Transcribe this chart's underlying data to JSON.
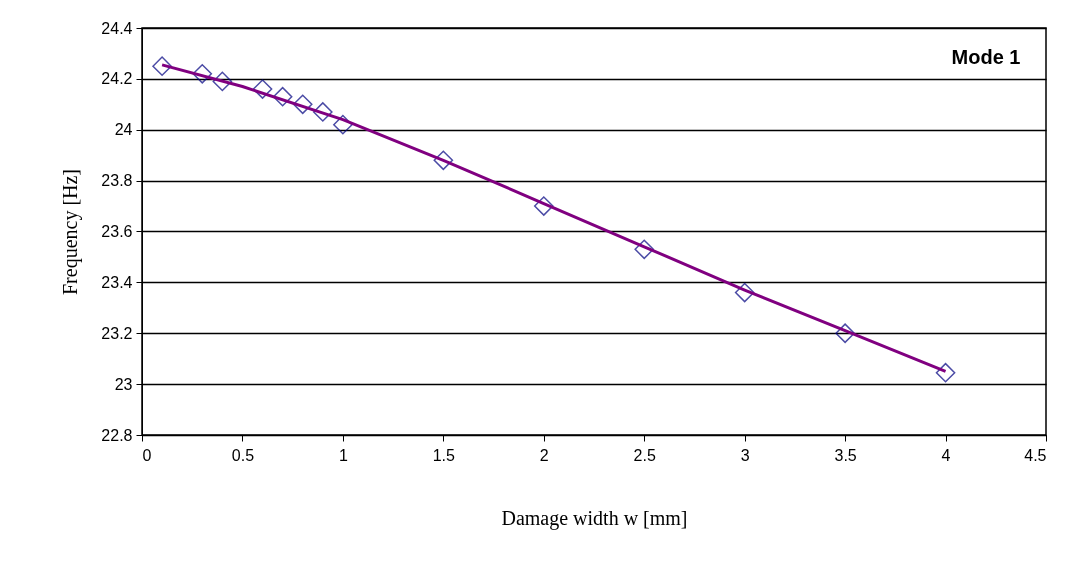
{
  "chart_data": {
    "type": "scatter",
    "xlabel": "Damage width w [mm]",
    "ylabel": "Frequency [Hz]",
    "annotations": [
      "Mode 1"
    ],
    "x": [
      0.1,
      0.3,
      0.4,
      0.6,
      0.7,
      0.8,
      0.9,
      1.0,
      1.5,
      2.0,
      2.5,
      3.0,
      3.5,
      4.0
    ],
    "series": [
      {
        "color": "#000080",
        "marker": "diamond",
        "values": [
          24.25,
          24.22,
          24.19,
          24.16,
          24.13,
          24.1,
          24.07,
          24.02,
          23.88,
          23.7,
          23.53,
          23.36,
          23.2,
          23.045
        ]
      },
      {
        "type": "line",
        "color": "#800080",
        "x": [
          0.1,
          0.5,
          1.0,
          1.5,
          2.0,
          2.5,
          3.0,
          3.5,
          4.0
        ],
        "values": [
          24.255,
          24.17,
          24.04,
          23.88,
          23.71,
          23.54,
          23.37,
          23.21,
          23.05
        ]
      }
    ],
    "xlim": [
      0,
      4.5
    ],
    "xticks": [
      0,
      0.5,
      1,
      1.5,
      2,
      2.5,
      3,
      3.5,
      4,
      4.5
    ],
    "ylim": [
      22.8,
      24.4
    ],
    "yticks": [
      22.8,
      23,
      23.2,
      23.4,
      23.6,
      23.8,
      24,
      24.2,
      24.4
    ],
    "grid": "y"
  }
}
